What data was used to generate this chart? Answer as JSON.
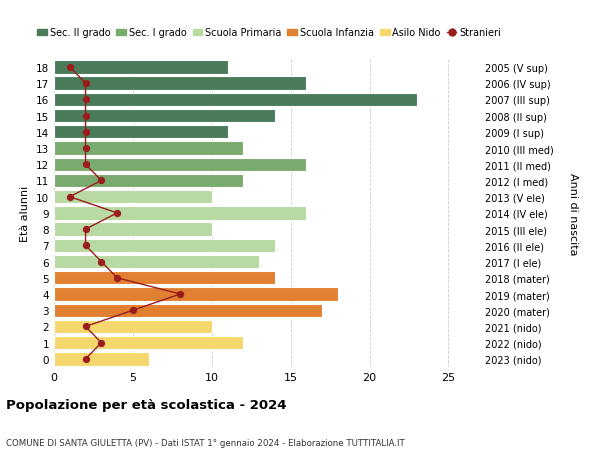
{
  "ages": [
    18,
    17,
    16,
    15,
    14,
    13,
    12,
    11,
    10,
    9,
    8,
    7,
    6,
    5,
    4,
    3,
    2,
    1,
    0
  ],
  "right_labels": [
    "2005 (V sup)",
    "2006 (IV sup)",
    "2007 (III sup)",
    "2008 (II sup)",
    "2009 (I sup)",
    "2010 (III med)",
    "2011 (II med)",
    "2012 (I med)",
    "2013 (V ele)",
    "2014 (IV ele)",
    "2015 (III ele)",
    "2016 (II ele)",
    "2017 (I ele)",
    "2018 (mater)",
    "2019 (mater)",
    "2020 (mater)",
    "2021 (nido)",
    "2022 (nido)",
    "2023 (nido)"
  ],
  "bar_values": [
    11,
    16,
    23,
    14,
    11,
    12,
    16,
    12,
    10,
    16,
    10,
    14,
    13,
    14,
    18,
    17,
    10,
    12,
    6
  ],
  "bar_colors": [
    "#4a7c59",
    "#4a7c59",
    "#4a7c59",
    "#4a7c59",
    "#4a7c59",
    "#7aab6e",
    "#7aab6e",
    "#7aab6e",
    "#b8d9a0",
    "#b8d9a0",
    "#b8d9a0",
    "#b8d9a0",
    "#b8d9a0",
    "#e08030",
    "#e08030",
    "#e08030",
    "#f5d76e",
    "#f5d76e",
    "#f5d76e"
  ],
  "stranieri_values": [
    1,
    2,
    2,
    2,
    2,
    2,
    2,
    3,
    1,
    4,
    2,
    2,
    3,
    4,
    8,
    5,
    2,
    3,
    2
  ],
  "stranieri_color": "#9b1c1c",
  "legend_items": [
    {
      "label": "Sec. II grado",
      "color": "#4a7c59"
    },
    {
      "label": "Sec. I grado",
      "color": "#7aab6e"
    },
    {
      "label": "Scuola Primaria",
      "color": "#b8d9a0"
    },
    {
      "label": "Scuola Infanzia",
      "color": "#e08030"
    },
    {
      "label": "Asilo Nido",
      "color": "#f5d76e"
    },
    {
      "label": "Stranieri",
      "color": "#9b1c1c"
    }
  ],
  "ylabel_left": "Età alunni",
  "ylabel_right": "Anni di nascita",
  "title": "Popolazione per età scolastica - 2024",
  "subtitle": "COMUNE DI SANTA GIULETTA (PV) - Dati ISTAT 1° gennaio 2024 - Elaborazione TUTTITALIA.IT",
  "xlim": [
    0,
    27
  ],
  "xticks": [
    0,
    5,
    10,
    15,
    20,
    25
  ],
  "background_color": "#ffffff",
  "grid_color": "#cccccc"
}
